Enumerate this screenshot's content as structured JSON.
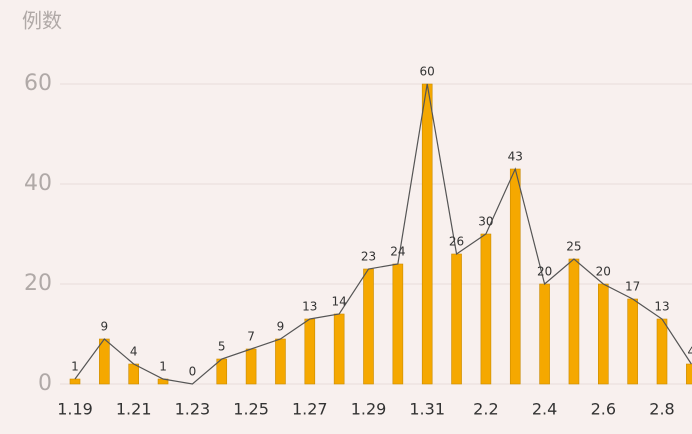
{
  "chart_data": {
    "type": "bar",
    "title": "例数",
    "categories": [
      "1.19",
      null,
      "1.21",
      null,
      "1.23",
      null,
      "1.25",
      null,
      "1.27",
      null,
      "1.29",
      null,
      "1.31",
      null,
      "2.2",
      null,
      "2.4",
      null,
      "2.6",
      null,
      "2.8",
      null
    ],
    "values": [
      1,
      9,
      4,
      1,
      0,
      5,
      7,
      9,
      13,
      14,
      23,
      24,
      60,
      26,
      30,
      43,
      20,
      25,
      20,
      17,
      13,
      4
    ],
    "color": "#f5a800",
    "line": true,
    "line_color": "#555555",
    "ylim": [
      0,
      70
    ],
    "yticks": [
      0,
      20,
      40,
      60
    ],
    "grid": true
  }
}
